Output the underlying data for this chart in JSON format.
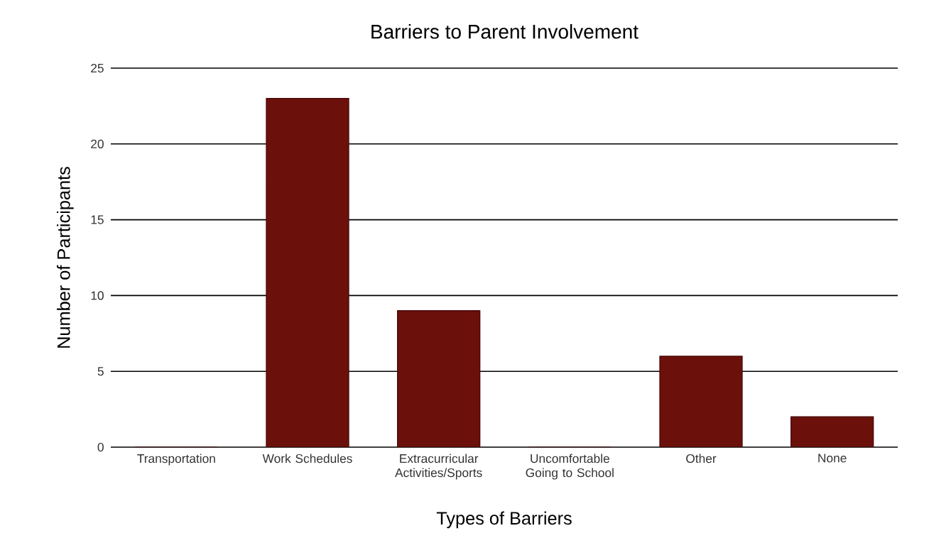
{
  "chart_data": {
    "type": "bar",
    "title": "Barriers to Parent Involvement",
    "xlabel": "Types of Barriers",
    "ylabel": "Number of Participants",
    "categories": [
      "Transportation",
      "Work Schedules",
      "Extracurricular Activities/Sports",
      "Uncomfortable Going to School",
      "Other",
      "None"
    ],
    "values": [
      0,
      23,
      9,
      0,
      6,
      2
    ],
    "color": "#6b100b",
    "ylim": [
      0,
      25
    ],
    "yticks": [
      0,
      5,
      10,
      15,
      20,
      25
    ],
    "grid": "y"
  }
}
